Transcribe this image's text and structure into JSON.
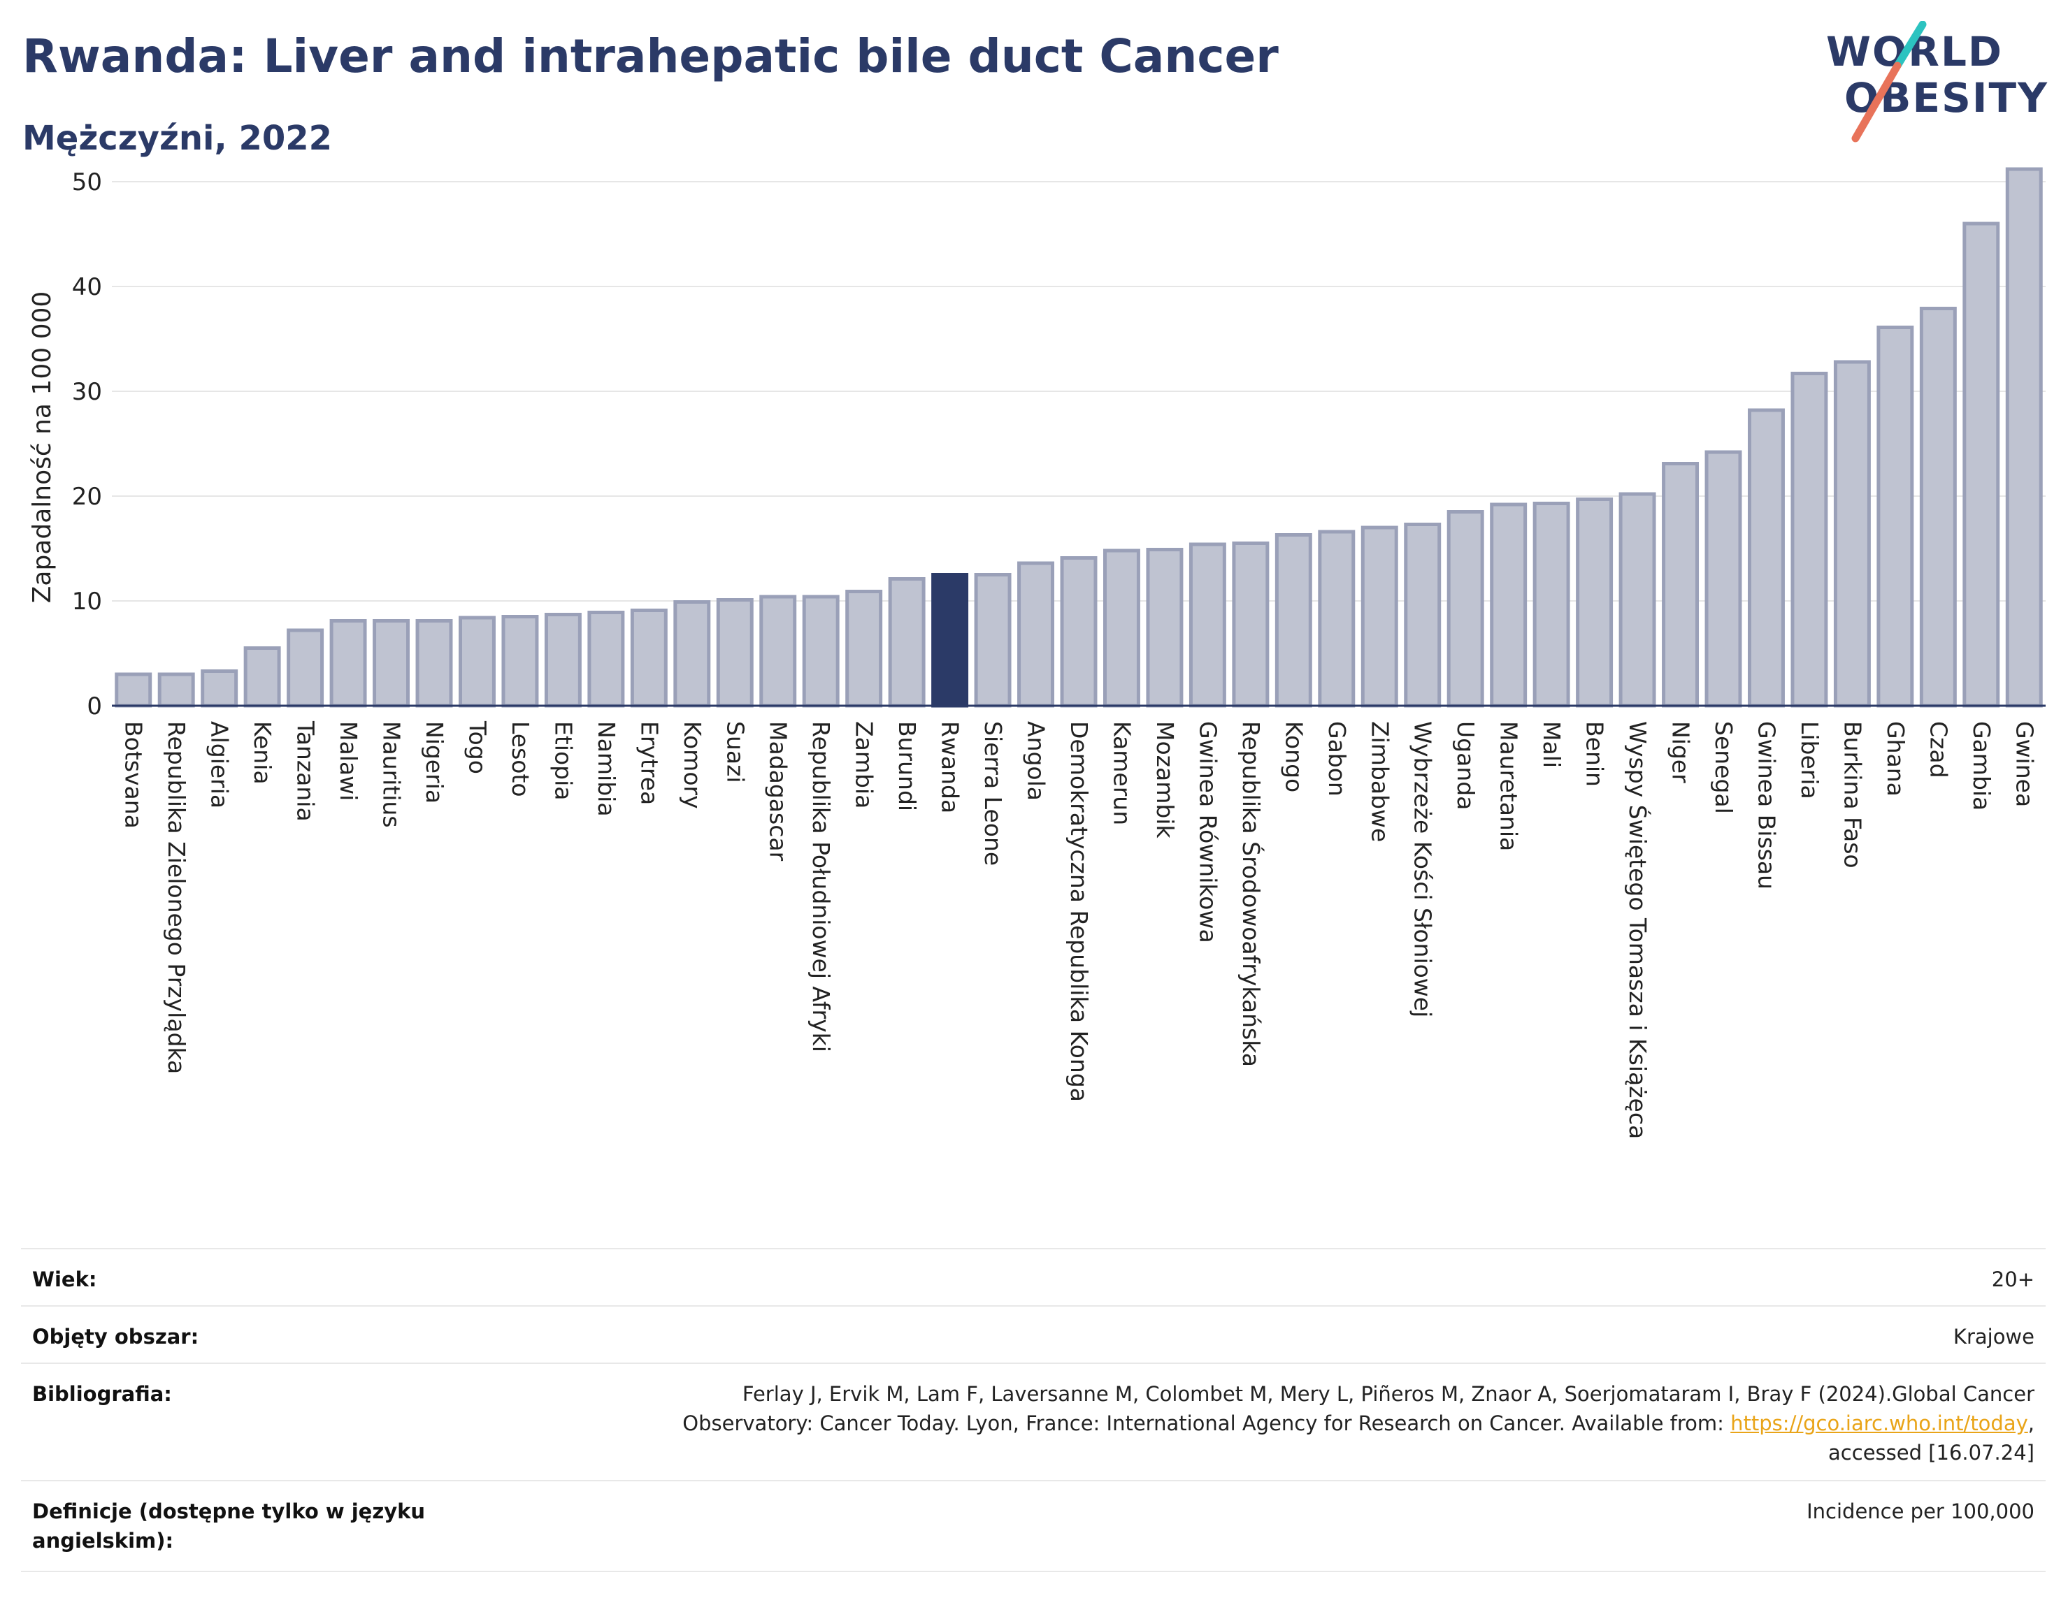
{
  "header": {
    "title": "Rwanda: Liver and intrahepatic bile duct Cancer",
    "subtitle": "Mężczyźni, 2022"
  },
  "logo": {
    "line1": "WORLD",
    "line2": "OBESITY",
    "accent_colors": [
      "#2cc3c0",
      "#e8735a"
    ]
  },
  "colors": {
    "bar": "#bfc3d1",
    "bar_stroke": "#9aa0b8",
    "highlight": "#2b3a67",
    "axis_text": "#222222",
    "grid": "#e6e6e6"
  },
  "chart_data": {
    "type": "bar",
    "ylabel": "Zapadalność na 100 000",
    "ylim": [
      0,
      52
    ],
    "yticks": [
      0,
      10,
      20,
      30,
      40,
      50
    ],
    "grid": true,
    "highlight": "Rwanda",
    "categories": [
      "Botsvana",
      "Republika Zielonego Przylądka",
      "Algieria",
      "Kenia",
      "Tanzania",
      "Malawi",
      "Mauritius",
      "Nigeria",
      "Togo",
      "Lesoto",
      "Etiopia",
      "Namibia",
      "Erytrea",
      "Komory",
      "Suazi",
      "Madagascar",
      "Republika Południowej Afryki",
      "Zambia",
      "Burundi",
      "Rwanda",
      "Sierra Leone",
      "Angola",
      "Demokratyczna Republika Konga",
      "Kamerun",
      "Mozambik",
      "Gwinea Równikowa",
      "Republika Środowoafrykańska",
      "Kongo",
      "Gabon",
      "Zimbabwe",
      "Wybrzeże Kości Słoniowej",
      "Uganda",
      "Mauretania",
      "Mali",
      "Benin",
      "Wyspy Świętego Tomasza i Książęca",
      "Niger",
      "Senegal",
      "Gwinea Bissau",
      "Liberia",
      "Burkina Faso",
      "Ghana",
      "Czad",
      "Gambia",
      "Gwinea"
    ],
    "values": [
      3.0,
      3.0,
      3.3,
      5.5,
      7.2,
      8.1,
      8.1,
      8.1,
      8.4,
      8.5,
      8.7,
      8.9,
      9.1,
      9.9,
      10.1,
      10.4,
      10.4,
      10.9,
      12.1,
      12.5,
      12.5,
      13.6,
      14.1,
      14.8,
      14.9,
      15.4,
      15.5,
      16.3,
      16.6,
      17.0,
      17.3,
      18.5,
      19.2,
      19.3,
      19.7,
      20.2,
      23.1,
      24.2,
      28.2,
      31.7,
      32.8,
      36.1,
      37.9,
      46.0,
      51.2
    ]
  },
  "footer": {
    "age_label": "Wiek:",
    "age_value": "20+",
    "coverage_label": "Objęty obszar:",
    "coverage_value": "Krajowe",
    "bib_label": "Bibliografia:",
    "bib_line1": "Ferlay J, Ervik M, Lam F, Laversanne M, Colombet M, Mery L, Piñeros M, Znaor A, Soerjomataram I, Bray F (2024).Global Cancer",
    "bib_line2_pre": "Observatory: Cancer Today. Lyon, France: International Agency for Research on Cancer. Available from: ",
    "bib_link": "https://gco.iarc.who.int/today",
    "bib_line2_post": ",",
    "bib_line3": "accessed [16.07.24]",
    "def_label_line1": "Definicje (dostępne tylko w języku",
    "def_label_line2": "angielskim):",
    "def_value": "Incidence per 100,000"
  }
}
